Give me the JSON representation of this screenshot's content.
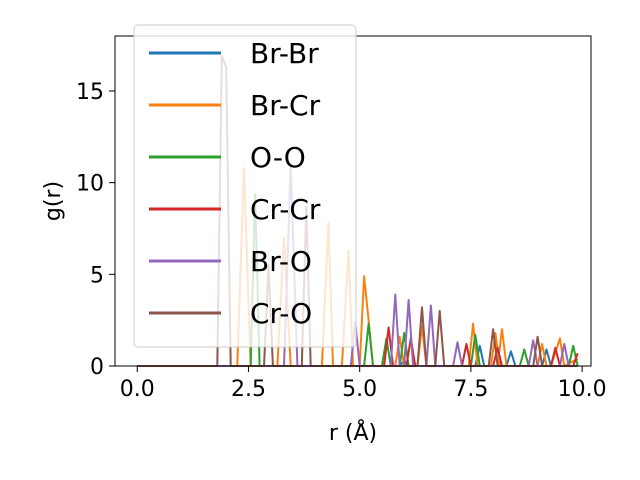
{
  "chart_data": {
    "type": "line",
    "title": "",
    "xlabel": "r (Å)",
    "ylabel": "g(r)",
    "xlim": [
      -0.5,
      10.2
    ],
    "ylim": [
      0,
      18
    ],
    "xticks": [
      0.0,
      2.5,
      5.0,
      7.5,
      10.0
    ],
    "xtick_labels": [
      "0.0",
      "2.5",
      "5.0",
      "7.5",
      "10.0"
    ],
    "yticks": [
      0,
      5,
      10,
      15
    ],
    "ytick_labels": [
      "0",
      "5",
      "10",
      "15"
    ],
    "grid": false,
    "legend_position": "top-left",
    "series": [
      {
        "name": "Br-Br",
        "color": "#1f77b4",
        "points": [
          [
            0,
            0
          ],
          [
            5.9,
            0
          ],
          [
            6.0,
            0.3
          ],
          [
            6.1,
            0
          ],
          [
            7.6,
            0
          ],
          [
            7.7,
            1.1
          ],
          [
            7.8,
            0
          ],
          [
            8.3,
            0
          ],
          [
            8.4,
            0.8
          ],
          [
            8.5,
            0
          ],
          [
            9.1,
            0
          ],
          [
            9.2,
            0.9
          ],
          [
            9.3,
            0
          ],
          [
            9.9,
            0
          ]
        ]
      },
      {
        "name": "Br-Cr",
        "color": "#ff7f0e",
        "points": [
          [
            0,
            0
          ],
          [
            2.25,
            0
          ],
          [
            2.4,
            10.8
          ],
          [
            2.55,
            0
          ],
          [
            3.15,
            0
          ],
          [
            3.3,
            7.0
          ],
          [
            3.45,
            0
          ],
          [
            4.15,
            0
          ],
          [
            4.3,
            7.8
          ],
          [
            4.4,
            0
          ],
          [
            4.6,
            0
          ],
          [
            4.75,
            6.3
          ],
          [
            4.85,
            0
          ],
          [
            5.0,
            0
          ],
          [
            5.1,
            4.9
          ],
          [
            5.2,
            2.5
          ],
          [
            5.3,
            0
          ],
          [
            5.8,
            0
          ],
          [
            5.9,
            1.6
          ],
          [
            6.0,
            0
          ],
          [
            6.3,
            0
          ],
          [
            6.4,
            2.2
          ],
          [
            6.5,
            0
          ],
          [
            7.45,
            0
          ],
          [
            7.55,
            2.3
          ],
          [
            7.65,
            0
          ],
          [
            7.95,
            0
          ],
          [
            8.05,
            1.8
          ],
          [
            8.15,
            0
          ],
          [
            8.1,
            0
          ],
          [
            8.2,
            2.0
          ],
          [
            8.3,
            0
          ],
          [
            9.0,
            0
          ],
          [
            9.1,
            1.2
          ],
          [
            9.2,
            0
          ],
          [
            9.3,
            0
          ],
          [
            9.5,
            1.5
          ],
          [
            9.6,
            0
          ],
          [
            9.9,
            0.4
          ]
        ]
      },
      {
        "name": "O-O",
        "color": "#2ca02c",
        "points": [
          [
            0,
            0
          ],
          [
            2.55,
            0
          ],
          [
            2.65,
            9.4
          ],
          [
            2.75,
            0
          ],
          [
            5.1,
            0
          ],
          [
            5.2,
            2.3
          ],
          [
            5.3,
            0
          ],
          [
            5.5,
            0
          ],
          [
            5.6,
            1.5
          ],
          [
            5.7,
            0
          ],
          [
            5.9,
            0
          ],
          [
            6.0,
            1.8
          ],
          [
            6.1,
            0
          ],
          [
            7.5,
            0
          ],
          [
            7.6,
            1.7
          ],
          [
            7.7,
            0
          ],
          [
            8.6,
            0
          ],
          [
            8.7,
            0.9
          ],
          [
            8.8,
            0
          ],
          [
            9.7,
            0
          ],
          [
            9.8,
            1.1
          ],
          [
            9.9,
            0
          ]
        ]
      },
      {
        "name": "Cr-Cr",
        "color": "#d62728",
        "points": [
          [
            0,
            0
          ],
          [
            5.55,
            0
          ],
          [
            5.65,
            2.1
          ],
          [
            5.75,
            0
          ],
          [
            6.05,
            0
          ],
          [
            6.15,
            1.5
          ],
          [
            6.25,
            0
          ],
          [
            7.3,
            0
          ],
          [
            7.4,
            1.2
          ],
          [
            7.5,
            0
          ],
          [
            8.0,
            0
          ],
          [
            8.1,
            1.0
          ],
          [
            8.2,
            0
          ],
          [
            9.3,
            0
          ],
          [
            9.4,
            1.0
          ],
          [
            9.5,
            0
          ],
          [
            9.8,
            0
          ],
          [
            9.9,
            0.7
          ]
        ]
      },
      {
        "name": "Br-O",
        "color": "#9467bd",
        "points": [
          [
            0,
            0
          ],
          [
            3.3,
            0
          ],
          [
            3.45,
            11.0
          ],
          [
            3.6,
            0
          ],
          [
            4.8,
            0
          ],
          [
            4.9,
            2.4
          ],
          [
            5.0,
            0
          ],
          [
            5.7,
            0
          ],
          [
            5.8,
            3.9
          ],
          [
            5.9,
            0
          ],
          [
            6.0,
            0
          ],
          [
            6.1,
            3.6
          ],
          [
            6.2,
            0
          ],
          [
            6.5,
            0
          ],
          [
            6.6,
            3.3
          ],
          [
            6.7,
            0
          ],
          [
            7.1,
            0
          ],
          [
            7.2,
            1.3
          ],
          [
            7.3,
            0
          ],
          [
            8.8,
            0
          ],
          [
            8.9,
            1.4
          ],
          [
            9.0,
            0
          ],
          [
            9.5,
            0
          ],
          [
            9.6,
            1.2
          ],
          [
            9.7,
            0
          ],
          [
            9.9,
            0
          ]
        ]
      },
      {
        "name": "Cr-O",
        "color": "#8c564b",
        "points": [
          [
            0,
            0
          ],
          [
            1.8,
            0
          ],
          [
            1.9,
            16.9
          ],
          [
            2.0,
            16.3
          ],
          [
            2.1,
            0
          ],
          [
            2.85,
            0
          ],
          [
            2.95,
            5.5
          ],
          [
            3.05,
            0
          ],
          [
            3.7,
            0
          ],
          [
            3.8,
            8.7
          ],
          [
            3.9,
            0
          ],
          [
            6.3,
            0
          ],
          [
            6.4,
            3.2
          ],
          [
            6.5,
            0
          ],
          [
            6.7,
            0
          ],
          [
            6.8,
            3.0
          ],
          [
            6.9,
            0
          ],
          [
            7.9,
            0
          ],
          [
            8.0,
            2.0
          ],
          [
            8.1,
            0
          ],
          [
            8.9,
            0
          ],
          [
            9.0,
            1.6
          ],
          [
            9.1,
            0
          ],
          [
            9.9,
            0
          ]
        ]
      }
    ]
  }
}
